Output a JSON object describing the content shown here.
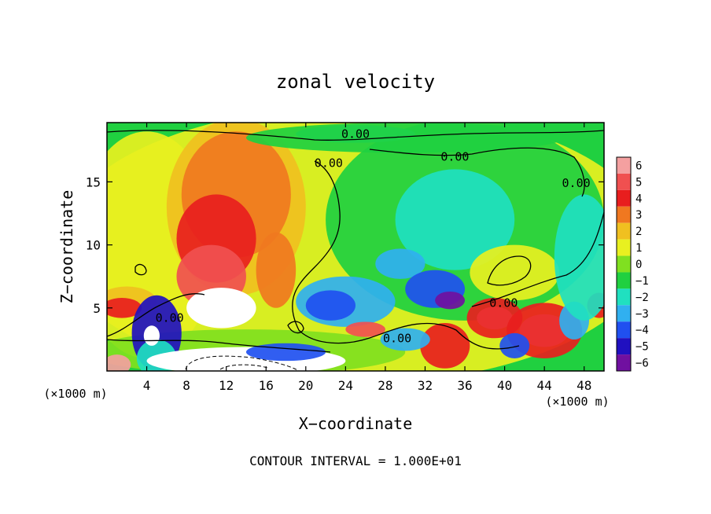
{
  "chart_data": {
    "type": "heatmap",
    "title": "zonal velocity",
    "xlabel": "X−coordinate",
    "ylabel": "Z−coordinate",
    "x_unit_left": "(×1000 m)",
    "x_unit_right": "(×1000 m)",
    "footer": "CONTOUR INTERVAL = 1.000E+01",
    "xlim": [
      0,
      50
    ],
    "ylim": [
      0,
      19.7
    ],
    "x_ticks": [
      4,
      8,
      12,
      16,
      20,
      24,
      28,
      32,
      36,
      40,
      44,
      48
    ],
    "x_tick_labels": [
      "4",
      "8",
      "12",
      "16",
      "20",
      "24",
      "28",
      "32",
      "36",
      "40",
      "44",
      "48"
    ],
    "y_ticks": [
      5,
      10,
      15
    ],
    "y_tick_labels": [
      "5",
      "10",
      "15"
    ],
    "colorbar": {
      "levels": [
        6,
        5,
        4,
        3,
        2,
        1,
        0,
        -1,
        -2,
        -3,
        -4,
        -5,
        -6
      ],
      "labels": [
        "6",
        "5",
        "4",
        "3",
        "2",
        "1",
        "0",
        "−1",
        "−2",
        "−3",
        "−4",
        "−5",
        "−6"
      ],
      "colors": [
        "#f4a0a0",
        "#f05050",
        "#e81e1e",
        "#f07820",
        "#f0c020",
        "#e8f020",
        "#80e020",
        "#20d040",
        "#20e0c0",
        "#30b0f0",
        "#2050f0",
        "#2010c0",
        "#7010a0"
      ]
    },
    "contour_labels": [
      {
        "text": "0.00",
        "x": 25.0,
        "y": 18.8
      },
      {
        "text": "0.00",
        "x": 22.3,
        "y": 16.5
      },
      {
        "text": "0.00",
        "x": 35.0,
        "y": 17.0
      },
      {
        "text": "0.00",
        "x": 47.2,
        "y": 14.9
      },
      {
        "text": "0.00",
        "x": 6.3,
        "y": 4.2
      },
      {
        "text": "0.00",
        "x": 39.9,
        "y": 5.4
      },
      {
        "text": "0.00",
        "x": 29.2,
        "y": 2.6
      }
    ],
    "blobs": [
      {
        "v": 0.5,
        "x": 25,
        "y": 10,
        "rx": 30,
        "ry": 11
      },
      {
        "v": 1.0,
        "x": 4,
        "y": 10,
        "rx": 7,
        "ry": 9
      },
      {
        "v": 2.0,
        "x": 13,
        "y": 13,
        "rx": 7,
        "ry": 7
      },
      {
        "v": 3.2,
        "x": 13,
        "y": 14,
        "rx": 5.5,
        "ry": 5
      },
      {
        "v": 4.2,
        "x": 11,
        "y": 10.5,
        "rx": 4,
        "ry": 3.5
      },
      {
        "v": 5.0,
        "x": 10.5,
        "y": 7.5,
        "rx": 3.5,
        "ry": 2.5
      },
      {
        "v": 6.5,
        "x": 11.5,
        "y": 5.0,
        "rx": 3.5,
        "ry": 1.6
      },
      {
        "v": 3.0,
        "x": 17,
        "y": 8,
        "rx": 2,
        "ry": 3
      },
      {
        "v": 2.0,
        "x": 2,
        "y": 5.5,
        "rx": 3,
        "ry": 1.2
      },
      {
        "v": 4.0,
        "x": 1.5,
        "y": 5.0,
        "rx": 2,
        "ry": 0.8
      },
      {
        "v": -1.5,
        "x": 36,
        "y": 12,
        "rx": 14,
        "ry": 8
      },
      {
        "v": -2.5,
        "x": 35,
        "y": 12,
        "rx": 6,
        "ry": 4
      },
      {
        "v": -2.5,
        "x": 25,
        "y": 18.8,
        "rx": 6,
        "ry": 0.7
      },
      {
        "v": -1.0,
        "x": 30,
        "y": 18.5,
        "rx": 16,
        "ry": 1.2
      },
      {
        "v": -3.0,
        "x": 24,
        "y": 5.5,
        "rx": 5,
        "ry": 2
      },
      {
        "v": -4.0,
        "x": 22.5,
        "y": 5.2,
        "rx": 2.5,
        "ry": 1.2
      },
      {
        "v": -3.5,
        "x": 29.5,
        "y": 8.5,
        "rx": 2.5,
        "ry": 1.2
      },
      {
        "v": -4.0,
        "x": 33,
        "y": 6.5,
        "rx": 3,
        "ry": 1.5
      },
      {
        "v": -6.0,
        "x": 34.5,
        "y": 5.6,
        "rx": 1.5,
        "ry": 0.7
      },
      {
        "v": 1.0,
        "x": 41,
        "y": 7.8,
        "rx": 4.5,
        "ry": 2.2
      },
      {
        "v": 0.0,
        "x": 14,
        "y": 1.5,
        "rx": 16,
        "ry": 1.8
      },
      {
        "v": -5.0,
        "x": 5,
        "y": 3.0,
        "rx": 2.5,
        "ry": 3
      },
      {
        "v": -2.0,
        "x": 5,
        "y": 1.0,
        "rx": 2,
        "ry": 1.5
      },
      {
        "v": 6.0,
        "x": 4.5,
        "y": 2.8,
        "rx": 0.8,
        "ry": 0.8
      },
      {
        "v": 5.5,
        "x": 1,
        "y": 0.5,
        "rx": 1.4,
        "ry": 0.8
      },
      {
        "v": 6.5,
        "x": 14,
        "y": 0.8,
        "rx": 10,
        "ry": 1.1
      },
      {
        "v": -4.0,
        "x": 18,
        "y": 1.5,
        "rx": 4,
        "ry": 0.7
      },
      {
        "v": 3.5,
        "x": 34,
        "y": 2.0,
        "rx": 2.5,
        "ry": 1.8
      },
      {
        "v": 4.5,
        "x": 26,
        "y": 3.3,
        "rx": 2,
        "ry": 0.6
      },
      {
        "v": -3.0,
        "x": 30,
        "y": 2.5,
        "rx": 2.5,
        "ry": 0.9
      },
      {
        "v": 6.5,
        "x": 39,
        "y": 4.2,
        "rx": 1.8,
        "ry": 0.9
      },
      {
        "v": 4.0,
        "x": 39,
        "y": 4.2,
        "rx": 2.8,
        "ry": 1.6
      },
      {
        "v": 6.5,
        "x": 44,
        "y": 3.2,
        "rx": 2.5,
        "ry": 1.3
      },
      {
        "v": 4.0,
        "x": 44,
        "y": 3.2,
        "rx": 3.8,
        "ry": 2.2
      },
      {
        "v": -4.0,
        "x": 41,
        "y": 2.0,
        "rx": 1.5,
        "ry": 1.0
      },
      {
        "v": -3.5,
        "x": 47,
        "y": 4.0,
        "rx": 1.5,
        "ry": 1.5
      },
      {
        "v": 3.5,
        "x": 49.5,
        "y": 5.2,
        "rx": 1.2,
        "ry": 1.0
      },
      {
        "v": -2.0,
        "x": 48,
        "y": 9.0,
        "rx": 3,
        "ry": 5
      }
    ]
  }
}
